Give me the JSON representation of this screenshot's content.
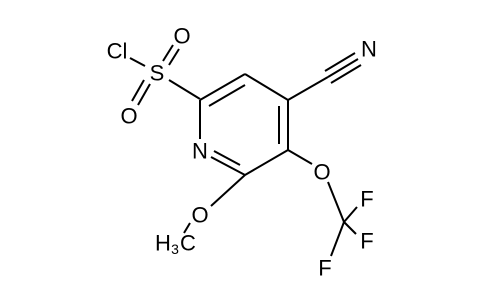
{
  "atoms": [
    {
      "label": "Cl"
    },
    {
      "label": "S"
    },
    {
      "label": "O"
    },
    {
      "label": "O"
    },
    {
      "label": "N"
    },
    {
      "label": "N"
    },
    {
      "label": "O"
    },
    {
      "label": "O"
    },
    {
      "label": "F"
    },
    {
      "label": "F"
    },
    {
      "label": "F"
    }
  ],
  "methyl": {
    "h": "H",
    "sub": "3",
    "c": "C"
  }
}
